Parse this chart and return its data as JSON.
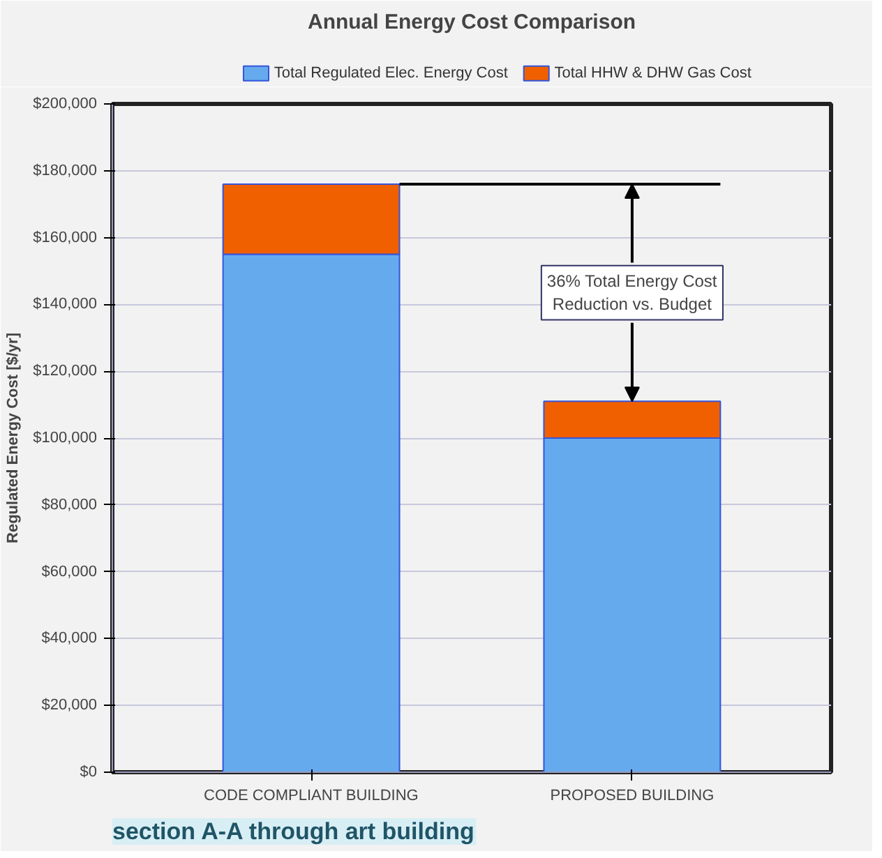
{
  "chart_data": {
    "type": "bar",
    "title": "Annual Energy Cost Comparison",
    "ylabel": "Regulated Energy Cost [$/yr]",
    "categories": [
      "CODE COMPLIANT BUILDING",
      "PROPOSED BUILDING"
    ],
    "stacked": true,
    "series": [
      {
        "name": "Total Regulated Elec. Energy Cost",
        "color": "#66aaee",
        "values": [
          155000,
          100000
        ]
      },
      {
        "name": "Total HHW & DHW Gas Cost",
        "color": "#f06000",
        "values": [
          21000,
          11000
        ]
      }
    ],
    "ylim": [
      0,
      200000
    ],
    "yticks": [
      {
        "value": 0,
        "label": "$0"
      },
      {
        "value": 20000,
        "label": "$20,000"
      },
      {
        "value": 40000,
        "label": "$40,000"
      },
      {
        "value": 60000,
        "label": "$60,000"
      },
      {
        "value": 80000,
        "label": "$80,000"
      },
      {
        "value": 100000,
        "label": "$100,000"
      },
      {
        "value": 120000,
        "label": "$120,000"
      },
      {
        "value": 140000,
        "label": "$140,000"
      },
      {
        "value": 160000,
        "label": "$160,000"
      },
      {
        "value": 180000,
        "label": "$180,000"
      },
      {
        "value": 200000,
        "label": "$200,000"
      }
    ],
    "ref_lines": [
      {
        "axis": "y",
        "value": 176000,
        "color": "#000000"
      }
    ],
    "annotations": [
      {
        "text": "36% Total Energy Cost\nReduction vs. Budget",
        "x": "PROPOSED BUILDING",
        "y": 111000
      },
      "section A-A through art building"
    ],
    "grid": "y",
    "legend": "top"
  }
}
